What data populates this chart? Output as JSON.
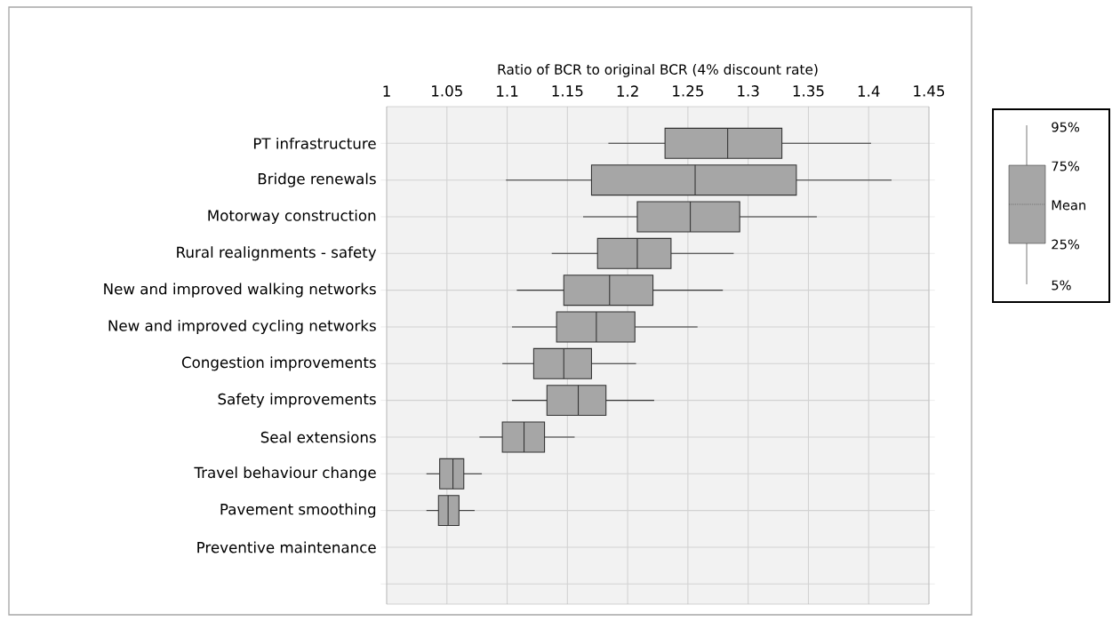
{
  "chart_data": {
    "type": "box",
    "xlabel": "Ratio of BCR to original BCR (4% discount rate)",
    "orientation": "horizontal",
    "categories": [
      "PT infrastructure",
      "Bridge renewals",
      "Motorway construction",
      "Rural realignments - safety",
      "New and improved walking networks",
      "New and improved cycling networks",
      "Congestion improvements",
      "Safety improvements",
      "Seal extensions",
      "Travel behaviour change",
      "Pavement smoothing",
      "Preventive maintenance",
      null
    ],
    "boxes": [
      {
        "low": 1.184,
        "q1": 1.231,
        "median": 1.283,
        "q3": 1.328,
        "high": 1.402
      },
      {
        "low": 1.099,
        "q1": 1.17,
        "median": 1.256,
        "q3": 1.34,
        "high": 1.419
      },
      {
        "low": 1.163,
        "q1": 1.208,
        "median": 1.252,
        "q3": 1.293,
        "high": 1.357
      },
      {
        "low": 1.137,
        "q1": 1.175,
        "median": 1.208,
        "q3": 1.236,
        "high": 1.288
      },
      {
        "low": 1.108,
        "q1": 1.147,
        "median": 1.185,
        "q3": 1.221,
        "high": 1.279
      },
      {
        "low": 1.104,
        "q1": 1.141,
        "median": 1.174,
        "q3": 1.206,
        "high": 1.258
      },
      {
        "low": 1.096,
        "q1": 1.122,
        "median": 1.147,
        "q3": 1.17,
        "high": 1.207
      },
      {
        "low": 1.104,
        "q1": 1.133,
        "median": 1.159,
        "q3": 1.182,
        "high": 1.222
      },
      {
        "low": 1.077,
        "q1": 1.096,
        "median": 1.114,
        "q3": 1.131,
        "high": 1.156
      },
      {
        "low": 1.033,
        "q1": 1.044,
        "median": 1.055,
        "q3": 1.064,
        "high": 1.079
      },
      {
        "low": 1.033,
        "q1": 1.043,
        "median": 1.051,
        "q3": 1.06,
        "high": 1.073
      },
      null,
      null
    ],
    "color": "#a6a6a6",
    "xlim": [
      1,
      1.45
    ],
    "xticks": [
      1,
      1.05,
      1.1,
      1.15,
      1.2,
      1.25,
      1.3,
      1.35,
      1.4,
      1.45
    ],
    "grid": true,
    "annotations": [
      "95%",
      "75%",
      "Mean",
      "25%",
      "5%"
    ]
  }
}
